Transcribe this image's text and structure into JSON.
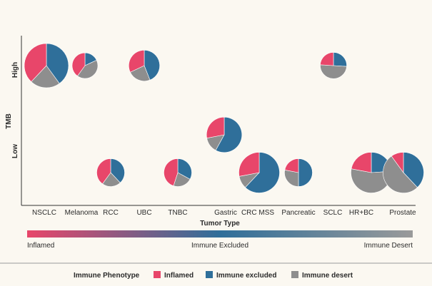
{
  "chart_data": {
    "type": "pie",
    "subtype": "pie-scatter",
    "xlabel": "Tumor Type",
    "ylabel": "TMB",
    "x_categories": [
      "NSCLC",
      "Melanoma",
      "RCC",
      "UBC",
      "TNBC",
      "Gastric",
      "CRC MSS",
      "Pancreatic",
      "SCLC",
      "HR+BC",
      "Prostate"
    ],
    "y_categories": [
      "Low",
      "High"
    ],
    "series_names": [
      "Inflamed",
      "Immune excluded",
      "Immune desert"
    ],
    "colors": {
      "Inflamed": "#e8466a",
      "Immune excluded": "#2f6f9a",
      "Immune desert": "#8e8e8e"
    },
    "points": [
      {
        "tumor": "NSCLC",
        "tmb": "High",
        "size": 1.0,
        "inflamed": 38,
        "excluded": 40,
        "desert": 22
      },
      {
        "tumor": "Melanoma",
        "tmb": "High",
        "size": 0.58,
        "inflamed": 40,
        "excluded": 18,
        "desert": 42
      },
      {
        "tumor": "UBC",
        "tmb": "High",
        "size": 0.7,
        "inflamed": 32,
        "excluded": 44,
        "desert": 24
      },
      {
        "tumor": "SCLC",
        "tmb": "High",
        "size": 0.6,
        "inflamed": 24,
        "excluded": 26,
        "desert": 50
      },
      {
        "tumor": "Gastric",
        "tmb": "Mid",
        "size": 0.8,
        "inflamed": 28,
        "excluded": 58,
        "desert": 14
      },
      {
        "tumor": "RCC",
        "tmb": "Low",
        "size": 0.63,
        "inflamed": 40,
        "excluded": 38,
        "desert": 22
      },
      {
        "tumor": "TNBC",
        "tmb": "Low",
        "size": 0.63,
        "inflamed": 45,
        "excluded": 33,
        "desert": 22
      },
      {
        "tumor": "CRC MSS",
        "tmb": "Low",
        "size": 0.92,
        "inflamed": 28,
        "excluded": 62,
        "desert": 10
      },
      {
        "tumor": "Pancreatic",
        "tmb": "Low",
        "size": 0.63,
        "inflamed": 22,
        "excluded": 50,
        "desert": 28
      },
      {
        "tumor": "HR+BC",
        "tmb": "Low",
        "size": 0.92,
        "inflamed": 22,
        "excluded": 24,
        "desert": 54
      },
      {
        "tumor": "Prostate",
        "tmb": "Low",
        "size": 0.92,
        "inflamed": 10,
        "excluded": 38,
        "desert": 52
      }
    ],
    "gradient": {
      "stops": [
        "#e8466a",
        "#2f6f9a",
        "#9a9a9a"
      ],
      "labels": {
        "left": "Inflamed",
        "middle": "Immune Excluded",
        "right": "Immune Desert"
      }
    },
    "legend": {
      "title": "Immune Phenotype",
      "items": [
        {
          "label": "Inflamed",
          "color": "#e8466a"
        },
        {
          "label": "Immune excluded",
          "color": "#2f6f9a"
        },
        {
          "label": "Immune desert",
          "color": "#8e8e8e"
        }
      ]
    }
  }
}
